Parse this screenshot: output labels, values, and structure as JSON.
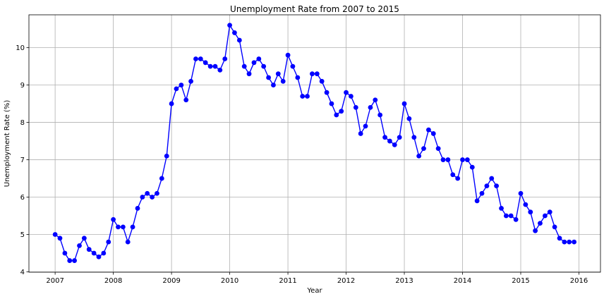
{
  "chart_data": {
    "type": "line",
    "title": "Unemployment Rate from 2007 to 2015",
    "xlabel": "Year",
    "ylabel": "Unemployment Rate (%)",
    "xlim": [
      2006.55,
      2016.37
    ],
    "ylim": [
      3.99,
      10.88
    ],
    "x_ticks": [
      2007,
      2008,
      2009,
      2010,
      2011,
      2012,
      2013,
      2014,
      2015,
      2016
    ],
    "y_ticks": [
      4,
      5,
      6,
      7,
      8,
      9,
      10
    ],
    "grid": true,
    "line_color": "#0000ff",
    "marker_color": "#0000ff",
    "series": [
      {
        "x": [
          2007.0,
          2007.083,
          2007.167,
          2007.25,
          2007.333,
          2007.417,
          2007.5,
          2007.583,
          2007.667,
          2007.75,
          2007.833,
          2007.917,
          2008.0,
          2008.083,
          2008.167,
          2008.25,
          2008.333,
          2008.417,
          2008.5,
          2008.583,
          2008.667,
          2008.75,
          2008.833,
          2008.917,
          2009.0,
          2009.083,
          2009.167,
          2009.25,
          2009.333,
          2009.417,
          2009.5,
          2009.583,
          2009.667,
          2009.75,
          2009.833,
          2009.917,
          2010.0,
          2010.083,
          2010.167,
          2010.25,
          2010.333,
          2010.417,
          2010.5,
          2010.583,
          2010.667,
          2010.75,
          2010.833,
          2010.917,
          2011.0,
          2011.083,
          2011.167,
          2011.25,
          2011.333,
          2011.417,
          2011.5,
          2011.583,
          2011.667,
          2011.75,
          2011.833,
          2011.917,
          2012.0,
          2012.083,
          2012.167,
          2012.25,
          2012.333,
          2012.417,
          2012.5,
          2012.583,
          2012.667,
          2012.75,
          2012.833,
          2012.917,
          2013.0,
          2013.083,
          2013.167,
          2013.25,
          2013.333,
          2013.417,
          2013.5,
          2013.583,
          2013.667,
          2013.75,
          2013.833,
          2013.917,
          2014.0,
          2014.083,
          2014.167,
          2014.25,
          2014.333,
          2014.417,
          2014.5,
          2014.583,
          2014.667,
          2014.75,
          2014.833,
          2014.917,
          2015.0,
          2015.083,
          2015.167,
          2015.25,
          2015.333,
          2015.417,
          2015.5,
          2015.583,
          2015.667,
          2015.75,
          2015.833,
          2015.917
        ],
        "values": [
          5.0,
          4.9,
          4.5,
          4.3,
          4.3,
          4.7,
          4.9,
          4.6,
          4.5,
          4.4,
          4.5,
          4.8,
          5.4,
          5.2,
          5.2,
          4.8,
          5.2,
          5.7,
          6.0,
          6.1,
          6.0,
          6.1,
          6.5,
          7.1,
          8.5,
          8.9,
          9.0,
          8.6,
          9.1,
          9.7,
          9.7,
          9.6,
          9.5,
          9.5,
          9.4,
          9.7,
          10.6,
          10.4,
          10.2,
          9.5,
          9.3,
          9.6,
          9.7,
          9.5,
          9.2,
          9.0,
          9.3,
          9.1,
          9.8,
          9.5,
          9.2,
          8.7,
          8.7,
          9.3,
          9.3,
          9.1,
          8.8,
          8.5,
          8.2,
          8.3,
          8.8,
          8.7,
          8.4,
          7.7,
          7.9,
          8.4,
          8.6,
          8.2,
          7.6,
          7.5,
          7.4,
          7.6,
          8.5,
          8.1,
          7.6,
          7.1,
          7.3,
          7.8,
          7.7,
          7.3,
          7.0,
          7.0,
          6.6,
          6.5,
          7.0,
          7.0,
          6.8,
          5.9,
          6.1,
          6.3,
          6.5,
          6.3,
          5.7,
          5.5,
          5.5,
          5.4,
          6.1,
          5.8,
          5.6,
          5.1,
          5.3,
          5.5,
          5.6,
          5.2,
          4.9,
          4.8,
          4.8,
          4.8
        ]
      }
    ]
  }
}
